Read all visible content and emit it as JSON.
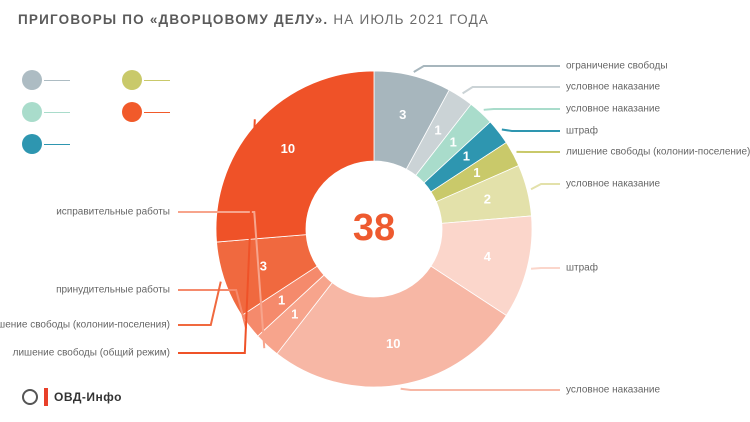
{
  "header": {
    "title_bold": "ПРИГОВОРЫ ПО «ДВОРЦОВОМУ ДЕЛУ».",
    "title_rest": " НА ИЮЛЬ 2021 ГОДА"
  },
  "legend": {
    "colors": [
      "#adbcc3",
      "#c9c96a",
      "#a9dccb",
      "#f15a2a",
      "#2e96b0"
    ]
  },
  "chart_data": {
    "type": "donut",
    "total": "38",
    "segments": [
      {
        "value": 3,
        "label": "ограничение свободы",
        "color": "#a7b6bd"
      },
      {
        "value": 1,
        "label": "условное наказание",
        "color": "#cbd3d6"
      },
      {
        "value": 1,
        "label": "условное наказание",
        "color": "#a9dccb"
      },
      {
        "value": 1,
        "label": "штраф",
        "color": "#2e96b0"
      },
      {
        "value": 1,
        "label": "лишение свободы (колонии-поселение)",
        "color": "#c9c96a"
      },
      {
        "value": 2,
        "label": "условное наказание",
        "color": "#e3e1aa"
      },
      {
        "value": 4,
        "label": "штраф",
        "color": "#fbd6cb"
      },
      {
        "value": 10,
        "label": "условное наказание",
        "color": "#f7b7a5"
      },
      {
        "value": 1,
        "label": "исправительные работы",
        "color": "#f7a48c"
      },
      {
        "value": 1,
        "label": "принудительные работы",
        "color": "#f58a6c"
      },
      {
        "value": 3,
        "label": "лишение свободы (колонии-поселения)",
        "color": "#f0693f"
      },
      {
        "value": 10,
        "label": "лишение свободы (общий режим)",
        "color": "#ef5228"
      }
    ]
  },
  "logo": {
    "text": "ОВД-Инфо"
  }
}
